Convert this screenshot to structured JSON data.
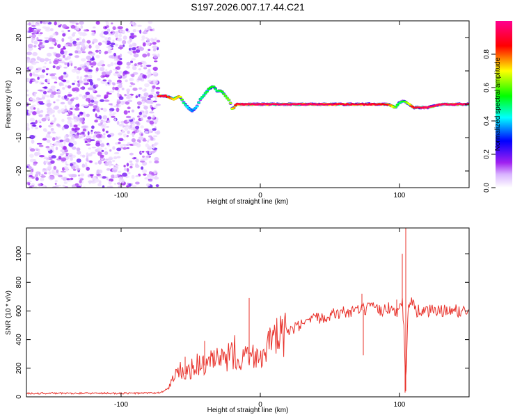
{
  "title": "S197.2026.007.17.44.C21",
  "chart_data": [
    {
      "type": "heatmap",
      "xlabel": "Height of straight line (km)",
      "ylabel": "Frequency (Hz)",
      "xlim": [
        -168,
        150
      ],
      "ylim": [
        -25,
        25
      ],
      "x_ticks": [
        -100,
        0,
        100
      ],
      "y_ticks": [
        -20,
        -10,
        0,
        10,
        20
      ],
      "colorbar": {
        "label": "Normalized spectral amplitude",
        "range": [
          0,
          1
        ],
        "ticks": [
          "0.0",
          "0.2",
          "0.4",
          "0.6",
          "0.8"
        ],
        "colors": [
          "#ffffff",
          "#a020f0",
          "#0000ff",
          "#00ffff",
          "#00ff00",
          "#ffff00",
          "#ff0000",
          "#ff00a0"
        ]
      },
      "noise_region_x": [
        -168,
        -73
      ],
      "ridge": {
        "x": [
          -73,
          -68,
          -62,
          -58,
          -55,
          -52,
          -49,
          -46,
          -43,
          -40,
          -37,
          -34,
          -31,
          -28,
          -25,
          -22,
          -20,
          -17,
          -13,
          0,
          20,
          40,
          60,
          80,
          92,
          97,
          100,
          103,
          107,
          110,
          120,
          130,
          140,
          150
        ],
        "frequency": [
          2.5,
          2.5,
          1.5,
          2.5,
          0.5,
          -1,
          -2,
          -1,
          1.5,
          3,
          4.5,
          5.5,
          4,
          4,
          2.5,
          1,
          -1.5,
          0,
          0,
          0,
          0,
          0,
          0,
          0,
          0,
          -1,
          0.5,
          1,
          0,
          -1,
          -1,
          0,
          0,
          0
        ],
        "amplitude": [
          0.9,
          0.9,
          0.7,
          0.75,
          0.5,
          0.4,
          0.35,
          0.4,
          0.5,
          0.5,
          0.55,
          0.55,
          0.5,
          0.55,
          0.6,
          0.65,
          0.7,
          0.9,
          0.92,
          0.95,
          0.95,
          0.95,
          0.9,
          0.9,
          0.85,
          0.6,
          0.5,
          0.55,
          0.7,
          0.9,
          0.95,
          0.95,
          0.95,
          0.95
        ]
      }
    },
    {
      "type": "line",
      "xlabel": "Height of straight line (km)",
      "ylabel": "SNR (10 * v/v)",
      "xlim": [
        -168,
        150
      ],
      "ylim": [
        0,
        1180
      ],
      "x_ticks": [
        -100,
        0,
        100
      ],
      "y_ticks": [
        0,
        200,
        400,
        600,
        800,
        1000
      ],
      "color": "#e8312a",
      "series": [
        {
          "name": "SNR",
          "x": [
            -168,
            -150,
            -130,
            -110,
            -90,
            -72,
            -66,
            -62,
            -58,
            -54,
            -50,
            -46,
            -42,
            -38,
            -34,
            -30,
            -26,
            -22,
            -20,
            -18,
            -16,
            -14,
            -12,
            -10,
            -8,
            -5,
            0,
            5,
            10,
            15,
            20,
            25,
            30,
            40,
            50,
            60,
            70,
            75,
            80,
            85,
            90,
            95,
            98,
            100,
            102,
            103.5,
            104.5,
            106,
            108,
            112,
            120,
            130,
            140,
            150
          ],
          "y": [
            25,
            25,
            25,
            25,
            25,
            28,
            60,
            140,
            180,
            160,
            190,
            220,
            230,
            210,
            250,
            260,
            240,
            300,
            280,
            330,
            260,
            290,
            300,
            330,
            300,
            280,
            310,
            350,
            390,
            420,
            450,
            480,
            500,
            545,
            575,
            590,
            600,
            610,
            620,
            600,
            615,
            620,
            600,
            610,
            680,
            400,
            40,
            620,
            680,
            600,
            600,
            600,
            600,
            600
          ],
          "spikes": [
            {
              "x": -8,
              "y": 690
            },
            {
              "x": -40,
              "y": 390
            },
            {
              "x": -54,
              "y": 280
            },
            {
              "x": 74,
              "y": 290
            },
            {
              "x": 73,
              "y": 720
            },
            {
              "x": 98,
              "y": 680
            },
            {
              "x": 102,
              "y": 1000
            },
            {
              "x": 104.5,
              "y": 1180
            },
            {
              "x": 104,
              "y": 30
            }
          ]
        }
      ]
    }
  ]
}
